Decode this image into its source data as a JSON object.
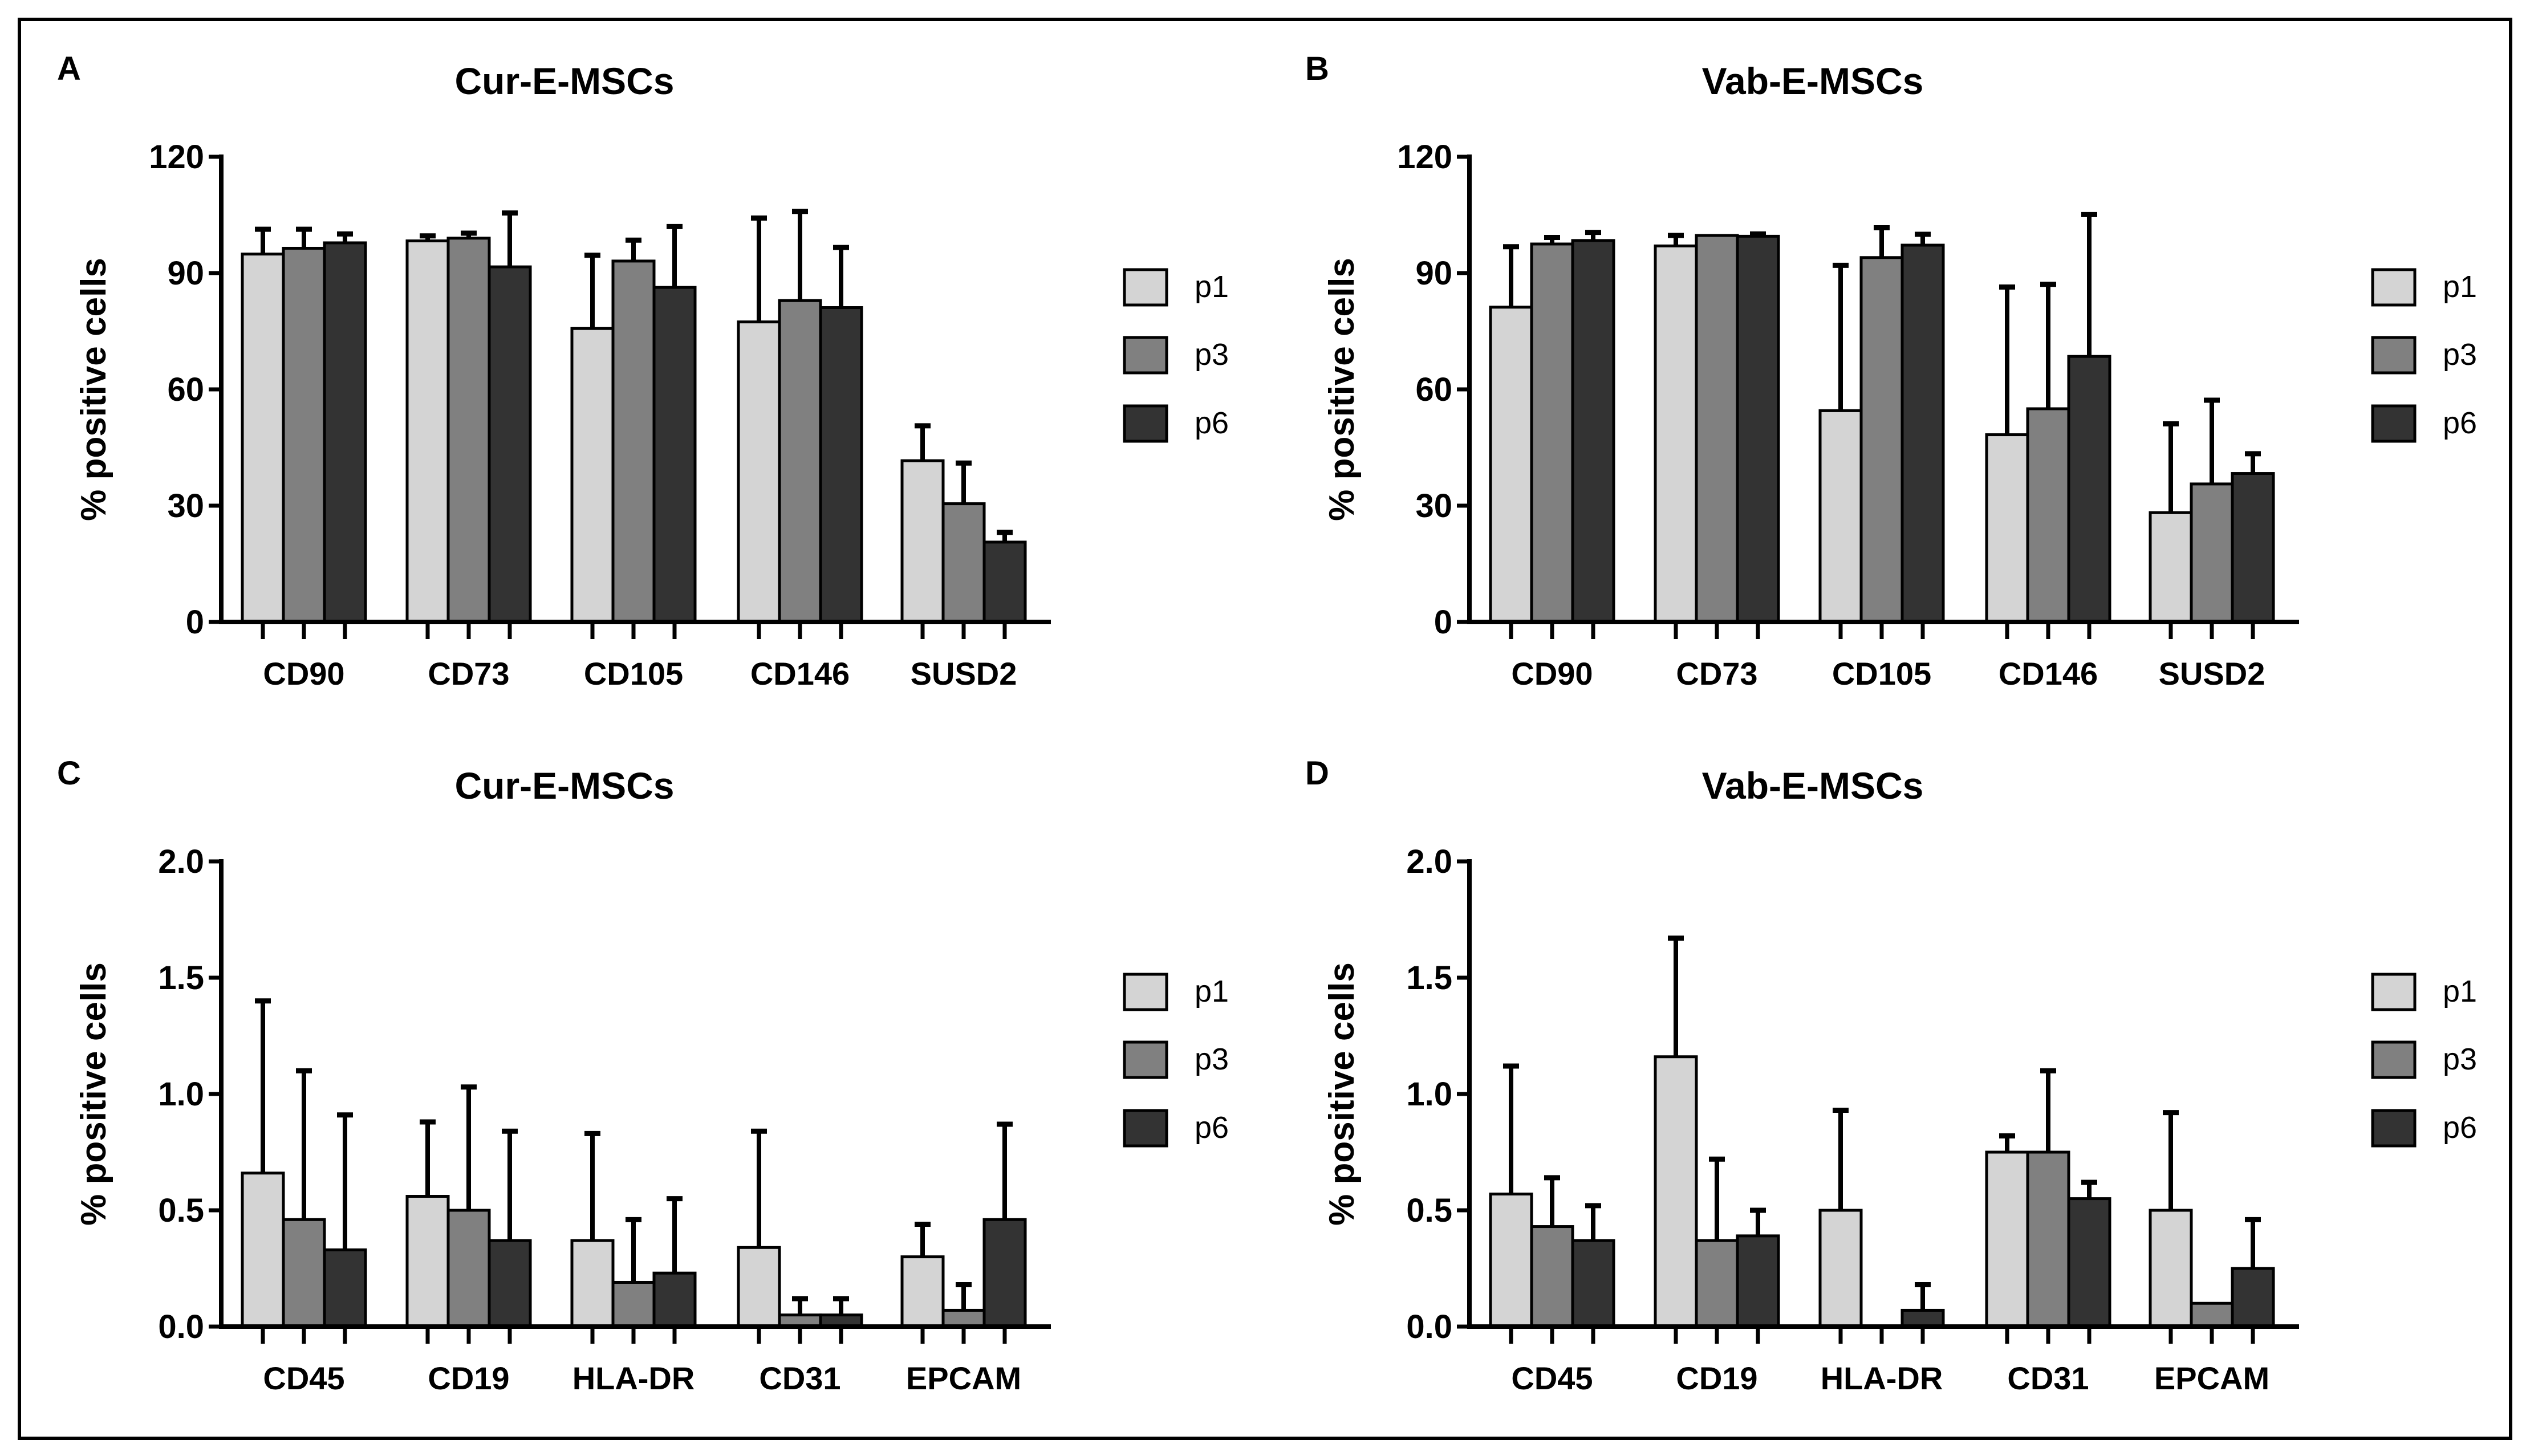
{
  "chart_data": [
    {
      "panel": "A",
      "type": "bar",
      "title": "Cur-E-MSCs",
      "ylabel": "% positive cells",
      "xlabel": "",
      "ylim": [
        0,
        120
      ],
      "yticks": [
        "0",
        "30",
        "60",
        "90",
        "120"
      ],
      "ytick_values": [
        0,
        30,
        60,
        90,
        120
      ],
      "categories": [
        "CD90",
        "CD73",
        "CD105",
        "CD146",
        "SUSD2"
      ],
      "legend": "right",
      "series": [
        {
          "name": "p1",
          "color": "#d4d4d4",
          "values": [
            94.9,
            98.3,
            75.7,
            77.4,
            41.6
          ],
          "error_upper": [
            101.3,
            99.6,
            94.6,
            104.2,
            50.6
          ]
        },
        {
          "name": "p3",
          "color": "#808080",
          "values": [
            96.4,
            99.0,
            93.1,
            82.9,
            30.5
          ],
          "error_upper": [
            101.3,
            100.3,
            98.5,
            105.9,
            41.0
          ]
        },
        {
          "name": "p6",
          "color": "#333333",
          "values": [
            97.8,
            91.6,
            86.3,
            81.1,
            20.6
          ],
          "error_upper": [
            100.1,
            105.5,
            102.0,
            96.6,
            23.1
          ]
        }
      ]
    },
    {
      "panel": "B",
      "type": "bar",
      "title": "Vab-E-MSCs",
      "ylabel": "% positive cells",
      "xlabel": "",
      "ylim": [
        0,
        120
      ],
      "yticks": [
        "0",
        "30",
        "60",
        "90",
        "120"
      ],
      "ytick_values": [
        0,
        30,
        60,
        90,
        120
      ],
      "categories": [
        "CD90",
        "CD73",
        "CD105",
        "CD146",
        "SUSD2"
      ],
      "legend": "right",
      "series": [
        {
          "name": "p1",
          "color": "#d4d4d4",
          "values": [
            81.2,
            97.0,
            54.5,
            48.3,
            28.2
          ],
          "error_upper": [
            96.8,
            99.7,
            92.0,
            86.4,
            51.1
          ]
        },
        {
          "name": "p3",
          "color": "#808080",
          "values": [
            97.5,
            99.7,
            94.0,
            55.0,
            35.6
          ],
          "error_upper": [
            99.2,
            99.7,
            101.7,
            87.1,
            57.2
          ]
        },
        {
          "name": "p6",
          "color": "#333333",
          "values": [
            98.4,
            99.5,
            97.2,
            68.5,
            38.3
          ],
          "error_upper": [
            100.5,
            100.1,
            100.0,
            105.1,
            43.4
          ]
        }
      ]
    },
    {
      "panel": "C",
      "type": "bar",
      "title": "Cur-E-MSCs",
      "ylabel": "% positive cells",
      "xlabel": "",
      "ylim": [
        0,
        2.0
      ],
      "yticks": [
        "0.0",
        "0.5",
        "1.0",
        "1.5",
        "2.0"
      ],
      "ytick_values": [
        0,
        0.5,
        1.0,
        1.5,
        2.0
      ],
      "categories": [
        "CD45",
        "CD19",
        "HLA-DR",
        "CD31",
        "EPCAM"
      ],
      "legend": "right",
      "series": [
        {
          "name": "p1",
          "color": "#d4d4d4",
          "values": [
            0.66,
            0.56,
            0.37,
            0.34,
            0.3
          ],
          "error_upper": [
            1.4,
            0.88,
            0.83,
            0.84,
            0.44
          ]
        },
        {
          "name": "p3",
          "color": "#808080",
          "values": [
            0.46,
            0.5,
            0.19,
            0.05,
            0.07
          ],
          "error_upper": [
            1.1,
            1.03,
            0.46,
            0.12,
            0.18
          ]
        },
        {
          "name": "p6",
          "color": "#333333",
          "values": [
            0.33,
            0.37,
            0.23,
            0.05,
            0.46
          ],
          "error_upper": [
            0.91,
            0.84,
            0.55,
            0.12,
            0.87
          ]
        }
      ]
    },
    {
      "panel": "D",
      "type": "bar",
      "title": "Vab-E-MSCs",
      "ylabel": "% positive cells",
      "xlabel": "",
      "ylim": [
        0,
        2.0
      ],
      "yticks": [
        "0.0",
        "0.5",
        "1.0",
        "1.5",
        "2.0"
      ],
      "ytick_values": [
        0,
        0.5,
        1.0,
        1.5,
        2.0
      ],
      "categories": [
        "CD45",
        "CD19",
        "HLA-DR",
        "CD31",
        "EPCAM"
      ],
      "legend": "right",
      "series": [
        {
          "name": "p1",
          "color": "#d4d4d4",
          "values": [
            0.57,
            1.16,
            0.5,
            0.75,
            0.5
          ],
          "error_upper": [
            1.12,
            1.67,
            0.93,
            0.82,
            0.92
          ]
        },
        {
          "name": "p3",
          "color": "#808080",
          "values": [
            0.43,
            0.37,
            0.0,
            0.75,
            0.1
          ],
          "error_upper": [
            0.64,
            0.72,
            0.0,
            1.1,
            0.1
          ]
        },
        {
          "name": "p6",
          "color": "#333333",
          "values": [
            0.37,
            0.39,
            0.07,
            0.55,
            0.25
          ],
          "error_upper": [
            0.52,
            0.5,
            0.18,
            0.62,
            0.46
          ]
        }
      ]
    }
  ]
}
